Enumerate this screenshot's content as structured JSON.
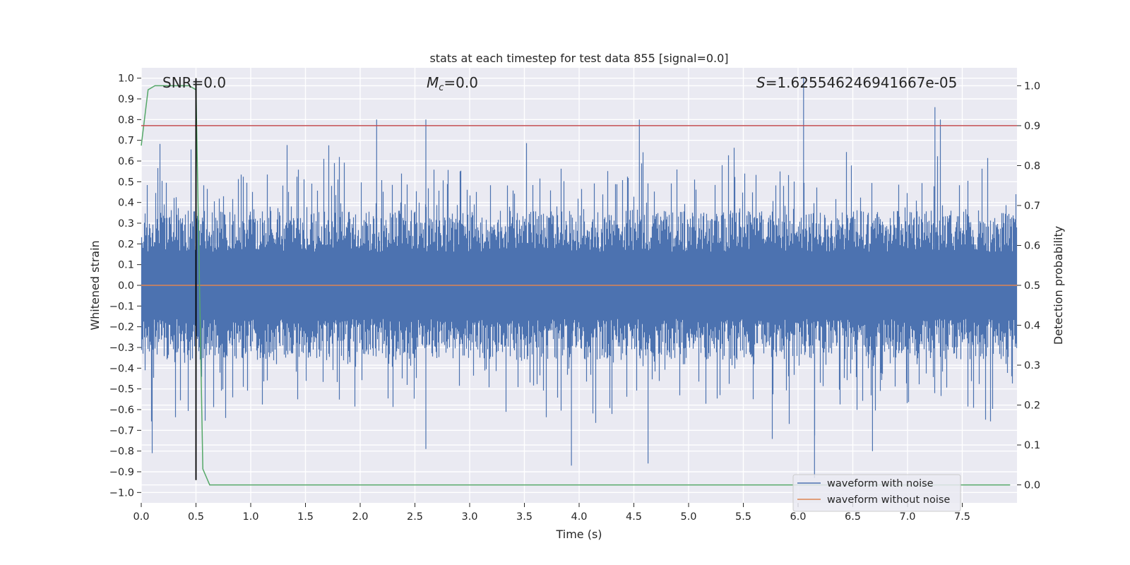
{
  "chart_data": {
    "type": "line",
    "title": "stats at each timestep for test data 855 [signal=0.0]",
    "xlabel": "Time (s)",
    "ylabel_left": "Whitened strain",
    "ylabel_right": "Detection probability",
    "xlim": [
      0.0,
      8.0
    ],
    "ylim_left": [
      -1.05,
      1.05
    ],
    "ylim_right": [
      -0.045,
      1.045
    ],
    "grid": true,
    "xticks": [
      "0.0",
      "0.5",
      "1.0",
      "1.5",
      "2.0",
      "2.5",
      "3.0",
      "3.5",
      "4.0",
      "4.5",
      "5.0",
      "5.5",
      "6.0",
      "6.5",
      "7.0",
      "7.5"
    ],
    "yticks_left": [
      "1.0",
      "0.9",
      "0.8",
      "0.7",
      "0.6",
      "0.5",
      "0.4",
      "0.3",
      "0.2",
      "0.1",
      "0.0",
      "−0.1",
      "−0.2",
      "−0.3",
      "−0.4",
      "−0.5",
      "−0.6",
      "−0.7",
      "−0.8",
      "−0.9",
      "−1.0"
    ],
    "yticks_right": [
      "1.0",
      "0.9",
      "0.8",
      "0.7",
      "0.6",
      "0.5",
      "0.4",
      "0.3",
      "0.2",
      "0.1",
      "0.0"
    ],
    "annotations": {
      "snr": "SNR=0.0",
      "mc_symbol": "M",
      "mc_sub": "c",
      "mc_value": "=0.0",
      "s_symbol": "S",
      "s_value": "=1.625546246941667e-05"
    },
    "legend": {
      "placement": "lower right",
      "entries": [
        "waveform with noise",
        "waveform without noise"
      ]
    },
    "series": [
      {
        "name": "waveform with noise",
        "axis": "left",
        "color": "#4c72b0",
        "sample_rate": 2048,
        "duration": 8,
        "noise_envelope": [
          -0.36,
          0.36
        ],
        "max": 1.0,
        "min": -0.93,
        "peaks": [
          {
            "x": 2.15,
            "y": 0.8
          },
          {
            "x": 2.6,
            "y": 0.8
          },
          {
            "x": 4.55,
            "y": 0.8
          },
          {
            "x": 6.05,
            "y": 1.0
          },
          {
            "x": 7.25,
            "y": 0.86
          },
          {
            "x": 7.3,
            "y": 0.8
          },
          {
            "x": 3.93,
            "y": -0.87
          },
          {
            "x": 4.63,
            "y": -0.86
          },
          {
            "x": 6.15,
            "y": -0.93
          },
          {
            "x": 0.1,
            "y": -0.81
          },
          {
            "x": 2.6,
            "y": -0.79
          },
          {
            "x": 6.68,
            "y": -0.8
          }
        ]
      },
      {
        "name": "waveform without noise",
        "axis": "left",
        "color": "#dd8452",
        "x": [
          0,
          8
        ],
        "y": [
          0.0,
          0.0
        ]
      },
      {
        "axis": "right",
        "color": "#55a868",
        "x": [
          0.0,
          0.0625,
          0.125,
          0.1875,
          0.25,
          0.3125,
          0.375,
          0.4375,
          0.5,
          0.5625,
          0.625,
          1.0,
          2.0,
          3.0,
          4.0,
          5.0,
          6.0,
          7.0,
          7.9375
        ],
        "y": [
          0.85,
          0.99,
          1.0,
          1.0,
          1.0,
          1.0,
          1.0,
          1.0,
          0.99,
          0.04,
          0.0,
          0.0,
          0.0,
          0.0,
          0.0,
          0.0,
          0.0,
          0.0,
          0.0
        ]
      },
      {
        "axis": "right",
        "color": "#c44e52",
        "x": [
          0,
          8
        ],
        "y": [
          0.9,
          0.9
        ]
      },
      {
        "axis": "left",
        "color": "#000000",
        "x": [
          0.5,
          0.5
        ],
        "y": [
          -0.94,
          1.0
        ]
      }
    ]
  }
}
